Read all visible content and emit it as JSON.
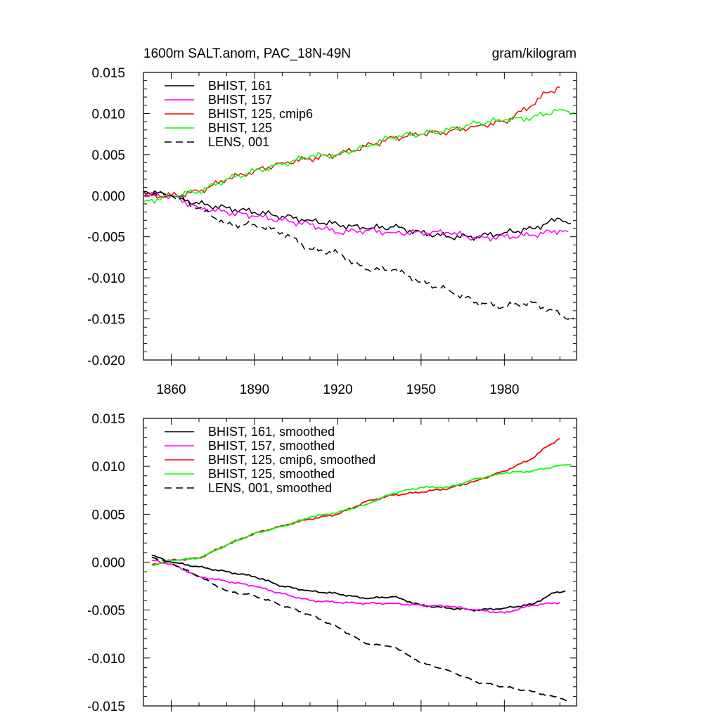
{
  "chart_data": [
    {
      "type": "line",
      "title": "1600m SALT.anom, PAC_18N-49N",
      "units": "gram/kilogram",
      "xlim": [
        1850,
        2006
      ],
      "ylim": [
        -0.02,
        0.015
      ],
      "yticks": [
        -0.02,
        -0.015,
        -0.01,
        -0.005,
        0.0,
        0.005,
        0.01,
        0.015
      ],
      "ytick_labels": [
        "-0.020",
        "-0.015",
        "-0.010",
        "-0.005",
        "0.000",
        "0.005",
        "0.010",
        "0.015"
      ],
      "xticks": [
        1860,
        1890,
        1920,
        1950,
        1980
      ],
      "xtick_labels": [
        "1860",
        "1890",
        "1920",
        "1950",
        "1980"
      ],
      "series": [
        {
          "name": "BHIST, 161",
          "color": "#000000",
          "dash": false,
          "x": [
            1850,
            1860,
            1870,
            1880,
            1890,
            1900,
            1910,
            1920,
            1930,
            1940,
            1950,
            1960,
            1970,
            1980,
            1990,
            2000,
            2004
          ],
          "y": [
            0.0005,
            0.0,
            -0.001,
            -0.0015,
            -0.002,
            -0.0025,
            -0.003,
            -0.0035,
            -0.004,
            -0.0038,
            -0.0045,
            -0.005,
            -0.005,
            -0.0045,
            -0.004,
            -0.0028,
            -0.0034
          ]
        },
        {
          "name": "BHIST, 157",
          "color": "#ff00ff",
          "dash": false,
          "x": [
            1850,
            1860,
            1870,
            1880,
            1890,
            1900,
            1910,
            1920,
            1930,
            1940,
            1950,
            1960,
            1970,
            1980,
            1990,
            2000,
            2003
          ],
          "y": [
            0.0,
            0.0,
            -0.0015,
            -0.002,
            -0.0025,
            -0.003,
            -0.0035,
            -0.0045,
            -0.0042,
            -0.0045,
            -0.0045,
            -0.0045,
            -0.0052,
            -0.005,
            -0.0048,
            -0.0042,
            -0.0044
          ]
        },
        {
          "name": "BHIST, 125, cmip6",
          "color": "#ff0000",
          "dash": false,
          "x": [
            1850,
            1860,
            1870,
            1880,
            1890,
            1900,
            1910,
            1920,
            1930,
            1940,
            1950,
            1960,
            1970,
            1980,
            1990,
            1995,
            2000
          ],
          "y": [
            0.0,
            0.0,
            0.0005,
            0.002,
            0.003,
            0.004,
            0.0045,
            0.005,
            0.006,
            0.007,
            0.0075,
            0.0078,
            0.0085,
            0.009,
            0.011,
            0.0125,
            0.0132
          ]
        },
        {
          "name": "BHIST, 125",
          "color": "#00ff00",
          "dash": false,
          "x": [
            1850,
            1860,
            1870,
            1880,
            1890,
            1900,
            1910,
            1920,
            1930,
            1940,
            1950,
            1960,
            1970,
            1980,
            1990,
            2000,
            2005
          ],
          "y": [
            -0.0008,
            0.0,
            0.0005,
            0.002,
            0.003,
            0.0038,
            0.0048,
            0.005,
            0.006,
            0.0072,
            0.0075,
            0.008,
            0.0088,
            0.0092,
            0.0095,
            0.0105,
            0.0102
          ]
        },
        {
          "name": "LENS, 001",
          "color": "#000000",
          "dash": true,
          "x": [
            1850,
            1860,
            1870,
            1880,
            1890,
            1900,
            1910,
            1920,
            1930,
            1940,
            1950,
            1960,
            1970,
            1980,
            1990,
            2000,
            2005
          ],
          "y": [
            0.0005,
            0.0,
            -0.0015,
            -0.0035,
            -0.0035,
            -0.0045,
            -0.0065,
            -0.007,
            -0.009,
            -0.009,
            -0.0105,
            -0.0115,
            -0.013,
            -0.0135,
            -0.013,
            -0.0145,
            -0.015
          ]
        }
      ]
    },
    {
      "type": "line",
      "xlim": [
        1850,
        2006
      ],
      "ylim": [
        -0.015,
        0.015
      ],
      "yticks": [
        -0.015,
        -0.01,
        -0.005,
        0.0,
        0.005,
        0.01,
        0.015
      ],
      "ytick_labels": [
        "-0.015",
        "-0.010",
        "-0.005",
        "0.000",
        "0.005",
        "0.010",
        "0.015"
      ],
      "xticks": [
        1860,
        1890,
        1920,
        1950,
        1980
      ],
      "xtick_labels": [],
      "series": [
        {
          "name": "BHIST, 161, smoothed",
          "color": "#000000",
          "dash": false,
          "x": [
            1853,
            1860,
            1870,
            1880,
            1890,
            1900,
            1910,
            1920,
            1930,
            1940,
            1950,
            1960,
            1970,
            1980,
            1990,
            1998,
            2002
          ],
          "y": [
            0.0007,
            0.0,
            -0.0005,
            -0.001,
            -0.0015,
            -0.0025,
            -0.003,
            -0.0033,
            -0.0038,
            -0.0036,
            -0.0045,
            -0.0048,
            -0.005,
            -0.0048,
            -0.0044,
            -0.0032,
            -0.003
          ]
        },
        {
          "name": "BHIST, 157, smoothed",
          "color": "#ff00ff",
          "dash": false,
          "x": [
            1853,
            1860,
            1870,
            1880,
            1890,
            1900,
            1910,
            1920,
            1930,
            1940,
            1950,
            1960,
            1970,
            1980,
            1990,
            2000
          ],
          "y": [
            0.0002,
            -0.0002,
            -0.0015,
            -0.002,
            -0.0025,
            -0.0033,
            -0.004,
            -0.0042,
            -0.0043,
            -0.0043,
            -0.0045,
            -0.0046,
            -0.005,
            -0.0053,
            -0.0045,
            -0.0042
          ]
        },
        {
          "name": "BHIST, 125, cmip6, smoothed",
          "color": "#ff0000",
          "dash": false,
          "x": [
            1853,
            1860,
            1870,
            1880,
            1890,
            1900,
            1910,
            1920,
            1930,
            1940,
            1950,
            1960,
            1970,
            1980,
            1990,
            1995,
            2000
          ],
          "y": [
            -0.0003,
            0.0002,
            0.0004,
            0.0018,
            0.003,
            0.0038,
            0.0045,
            0.005,
            0.0063,
            0.007,
            0.0073,
            0.0077,
            0.0085,
            0.0095,
            0.0108,
            0.012,
            0.0129
          ]
        },
        {
          "name": "BHIST, 125, smoothed",
          "color": "#00ff00",
          "dash": false,
          "x": [
            1853,
            1860,
            1870,
            1880,
            1890,
            1900,
            1910,
            1920,
            1930,
            1940,
            1950,
            1960,
            1970,
            1980,
            1990,
            2000,
            2004
          ],
          "y": [
            -0.0003,
            0.0002,
            0.0004,
            0.0018,
            0.003,
            0.0037,
            0.0047,
            0.0052,
            0.006,
            0.0072,
            0.0078,
            0.0078,
            0.0087,
            0.0093,
            0.0095,
            0.0101,
            0.0102
          ]
        },
        {
          "name": "LENS, 001, smoothed",
          "color": "#000000",
          "dash": true,
          "x": [
            1853,
            1860,
            1870,
            1880,
            1890,
            1900,
            1910,
            1920,
            1930,
            1940,
            1950,
            1960,
            1970,
            1980,
            1990,
            2000,
            2004
          ],
          "y": [
            0.0005,
            -0.0001,
            -0.0015,
            -0.003,
            -0.0035,
            -0.0045,
            -0.0055,
            -0.0068,
            -0.0085,
            -0.0088,
            -0.0105,
            -0.0113,
            -0.0125,
            -0.013,
            -0.0135,
            -0.0142,
            -0.0145
          ]
        }
      ]
    }
  ]
}
